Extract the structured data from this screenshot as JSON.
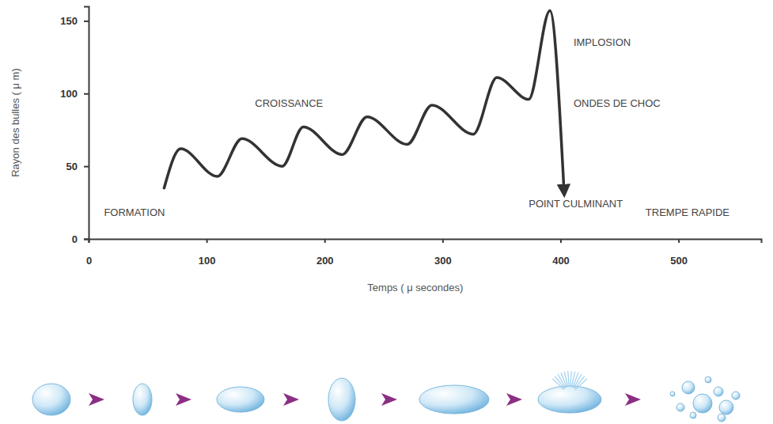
{
  "chart_data": {
    "type": "line",
    "x_label": "Temps ( μ secondes)",
    "y_label": "Rayon des bulles ( μ m)",
    "x": [
      64,
      78,
      109,
      130,
      164,
      182,
      215,
      236,
      270,
      291,
      326,
      346,
      373,
      391,
      403
    ],
    "values": [
      35,
      62,
      43,
      69,
      50,
      77,
      58,
      84,
      65,
      92,
      72,
      111,
      96,
      157,
      32
    ],
    "color": "#333333",
    "line_style": "solid",
    "xlim": [
      0,
      570
    ],
    "ylim": [
      0,
      160
    ],
    "xticks": [
      0,
      100,
      200,
      300,
      400,
      500
    ],
    "yticks": [
      0,
      50,
      100,
      150
    ],
    "grid": false,
    "annotations": [
      {
        "text": "FORMATION",
        "x": 13,
        "y": 16
      },
      {
        "text": "CROISSANCE",
        "x": 141,
        "y": 91
      },
      {
        "text": "IMPLOSION",
        "x": 411,
        "y": 133
      },
      {
        "text": "ONDES DE CHOC",
        "x": 411,
        "y": 91
      },
      {
        "text": "POINT CULMINANT",
        "x": 373,
        "y": 22
      },
      {
        "text": "TREMPE RAPIDE",
        "x": 472,
        "y": 16
      }
    ]
  }
}
